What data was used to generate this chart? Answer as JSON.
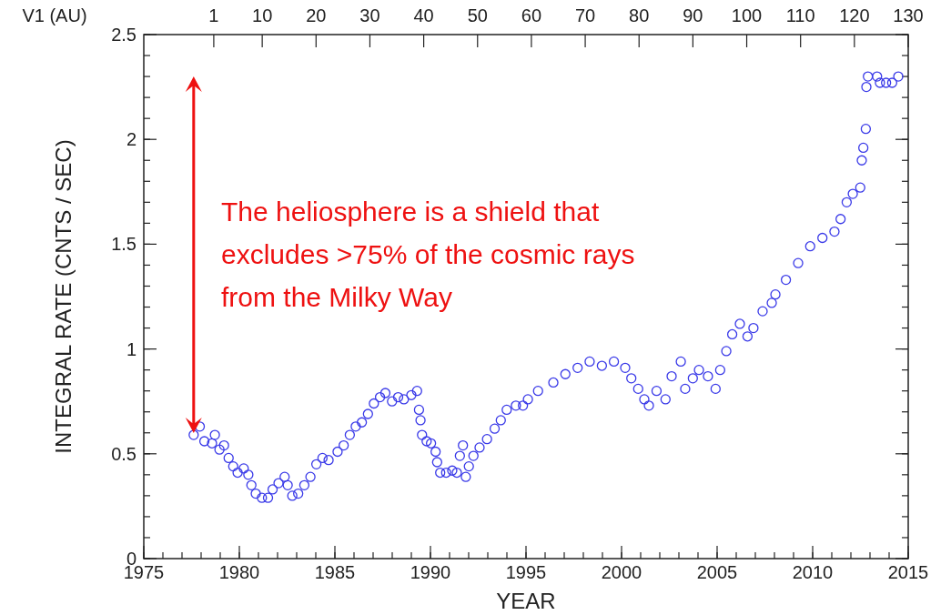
{
  "chart_data": {
    "type": "scatter",
    "xlabel": "YEAR",
    "ylabel": "INTEGRAL RATE (CNTS / SEC)",
    "x2label": "V1 (AU)",
    "annotations": [
      "The heliosphere is a shield that\nexcludes >75% of the cosmic rays\nfrom the Milky Way"
    ],
    "xlim": [
      1975,
      2015
    ],
    "xticks": [
      1975,
      1980,
      1985,
      1990,
      1995,
      2000,
      2005,
      2010,
      2015
    ],
    "x2lim": [
      -12,
      130
    ],
    "x2ticks": [
      1,
      10,
      20,
      30,
      40,
      50,
      60,
      70,
      80,
      90,
      100,
      110,
      120,
      130
    ],
    "ylim": [
      0,
      2.5
    ],
    "yticks": [
      0,
      0.5,
      1,
      1.5,
      2,
      2.5
    ],
    "marker": "circle",
    "grid": false,
    "series": [
      {
        "color": "#3a3ae8",
        "x": [
          1977.61,
          1977.93,
          1978.17,
          1978.57,
          1978.72,
          1978.96,
          1979.2,
          1979.44,
          1979.68,
          1979.91,
          1980.23,
          1980.47,
          1980.63,
          1980.86,
          1981.18,
          1981.5,
          1981.74,
          1982.05,
          1982.37,
          1982.53,
          1982.77,
          1983.08,
          1983.4,
          1983.72,
          1984.03,
          1984.35,
          1984.67,
          1985.14,
          1985.46,
          1985.78,
          1986.09,
          1986.41,
          1986.73,
          1987.04,
          1987.36,
          1987.64,
          1987.99,
          1988.31,
          1988.61,
          1989.0,
          1989.3,
          1989.4,
          1989.48,
          1989.56,
          1989.8,
          1990.03,
          1990.27,
          1990.35,
          1990.51,
          1990.82,
          1991.14,
          1991.38,
          1991.54,
          1991.7,
          1991.85,
          1992.01,
          1992.25,
          1992.57,
          1992.96,
          1993.36,
          1993.68,
          1993.99,
          1994.47,
          1994.84,
          1995.1,
          1995.63,
          1996.43,
          1997.06,
          1997.7,
          1998.33,
          1998.97,
          1999.6,
          2000.19,
          2000.51,
          2000.87,
          2001.19,
          2001.43,
          2001.83,
          2002.3,
          2002.62,
          2003.1,
          2003.33,
          2003.73,
          2004.05,
          2004.52,
          2004.92,
          2005.16,
          2005.48,
          2005.79,
          2006.19,
          2006.59,
          2006.9,
          2007.38,
          2007.86,
          2008.05,
          2008.6,
          2009.24,
          2009.87,
          2010.51,
          2011.14,
          2011.46,
          2011.78,
          2012.1,
          2012.49,
          2012.57,
          2012.65,
          2012.78,
          2012.81,
          2012.89,
          2013.37,
          2013.52,
          2013.84,
          2014.16,
          2014.48
        ],
        "values": [
          0.59,
          0.63,
          0.56,
          0.55,
          0.59,
          0.52,
          0.54,
          0.48,
          0.44,
          0.41,
          0.43,
          0.4,
          0.35,
          0.31,
          0.29,
          0.29,
          0.33,
          0.36,
          0.39,
          0.35,
          0.3,
          0.31,
          0.35,
          0.39,
          0.45,
          0.48,
          0.47,
          0.51,
          0.54,
          0.59,
          0.63,
          0.65,
          0.69,
          0.74,
          0.77,
          0.79,
          0.75,
          0.77,
          0.76,
          0.78,
          0.8,
          0.71,
          0.66,
          0.59,
          0.56,
          0.55,
          0.51,
          0.46,
          0.41,
          0.41,
          0.42,
          0.41,
          0.49,
          0.54,
          0.39,
          0.44,
          0.49,
          0.53,
          0.57,
          0.62,
          0.66,
          0.71,
          0.73,
          0.73,
          0.76,
          0.8,
          0.84,
          0.88,
          0.91,
          0.94,
          0.92,
          0.94,
          0.91,
          0.86,
          0.81,
          0.76,
          0.73,
          0.8,
          0.76,
          0.87,
          0.94,
          0.81,
          0.86,
          0.9,
          0.87,
          0.81,
          0.9,
          0.99,
          1.07,
          1.12,
          1.06,
          1.1,
          1.18,
          1.22,
          1.26,
          1.33,
          1.41,
          1.49,
          1.53,
          1.56,
          1.62,
          1.7,
          1.74,
          1.77,
          1.9,
          1.96,
          2.05,
          2.25,
          2.3,
          2.3,
          2.27,
          2.27,
          2.27,
          2.3
        ]
      }
    ]
  }
}
